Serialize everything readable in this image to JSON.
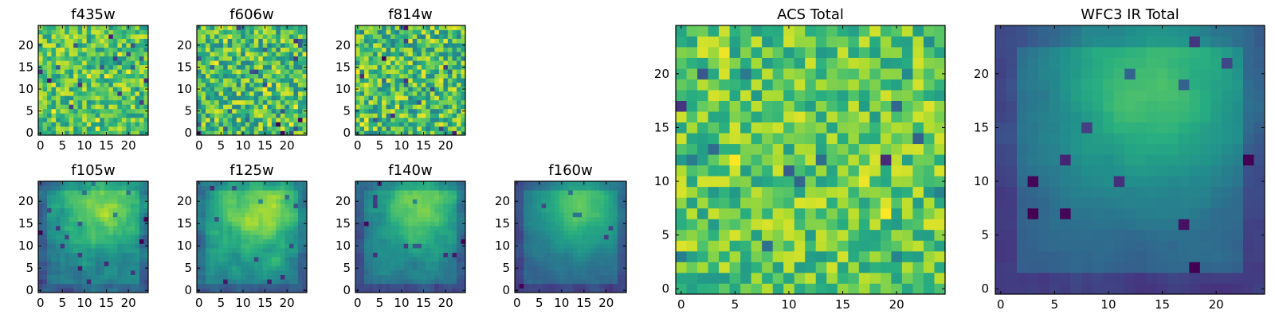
{
  "colormap": "viridis",
  "colors": {
    "low": "#440154",
    "mid_low": "#31688e",
    "mid": "#21918c",
    "mid_high": "#5ec962",
    "high": "#fde725",
    "frame": "#000000",
    "background": "#ffffff"
  },
  "chart_data": [
    {
      "type": "heatmap",
      "title": "f435w",
      "xticks": [
        "0",
        "5",
        "10",
        "15",
        "20"
      ],
      "yticks": [
        "0",
        "5",
        "10",
        "15",
        "20"
      ],
      "xlim": [
        -0.5,
        24.5
      ],
      "ylim": [
        -0.5,
        24.5
      ],
      "grid": [
        25,
        25
      ],
      "pattern": "noise",
      "level": 0.72,
      "spread": 0.14,
      "seed": 11
    },
    {
      "type": "heatmap",
      "title": "f606w",
      "xticks": [
        "0",
        "5",
        "10",
        "15",
        "20"
      ],
      "yticks": [
        "0",
        "5",
        "10",
        "15",
        "20"
      ],
      "xlim": [
        -0.5,
        24.5
      ],
      "ylim": [
        -0.5,
        24.5
      ],
      "grid": [
        25,
        25
      ],
      "pattern": "noise",
      "level": 0.7,
      "spread": 0.17,
      "seed": 23
    },
    {
      "type": "heatmap",
      "title": "f814w",
      "xticks": [
        "0",
        "5",
        "10",
        "15",
        "20"
      ],
      "yticks": [
        "0",
        "5",
        "10",
        "15",
        "20"
      ],
      "xlim": [
        -0.5,
        24.5
      ],
      "ylim": [
        -0.5,
        24.5
      ],
      "grid": [
        25,
        25
      ],
      "pattern": "noise",
      "level": 0.7,
      "spread": 0.17,
      "seed": 37
    },
    {
      "type": "heatmap",
      "title": "f105w",
      "xticks": [
        "0",
        "5",
        "10",
        "15",
        "20"
      ],
      "yticks": [
        "0",
        "5",
        "10",
        "15",
        "20"
      ],
      "xlim": [
        -0.5,
        24.5
      ],
      "ylim": [
        -0.5,
        24.5
      ],
      "grid": [
        25,
        25
      ],
      "pattern": "blob",
      "level": 0.58,
      "spread": 0.15,
      "seed": 41
    },
    {
      "type": "heatmap",
      "title": "f125w",
      "xticks": [
        "0",
        "5",
        "10",
        "15",
        "20"
      ],
      "yticks": [
        "0",
        "5",
        "10",
        "15",
        "20"
      ],
      "xlim": [
        -0.5,
        24.5
      ],
      "ylim": [
        -0.5,
        24.5
      ],
      "grid": [
        25,
        25
      ],
      "pattern": "blob",
      "level": 0.62,
      "spread": 0.14,
      "seed": 53
    },
    {
      "type": "heatmap",
      "title": "f140w",
      "xticks": [
        "0",
        "5",
        "10",
        "15",
        "20"
      ],
      "yticks": [
        "0",
        "5",
        "10",
        "15",
        "20"
      ],
      "xlim": [
        -0.5,
        24.5
      ],
      "ylim": [
        -0.5,
        24.5
      ],
      "grid": [
        25,
        25
      ],
      "pattern": "blob",
      "level": 0.55,
      "spread": 0.11,
      "seed": 67
    },
    {
      "type": "heatmap",
      "title": "f160w",
      "xticks": [
        "0",
        "5",
        "10",
        "15",
        "20"
      ],
      "yticks": [
        "0",
        "5",
        "10",
        "15",
        "20"
      ],
      "xlim": [
        -0.5,
        24.5
      ],
      "ylim": [
        -0.5,
        24.5
      ],
      "grid": [
        25,
        25
      ],
      "pattern": "blob",
      "level": 0.5,
      "spread": 0.07,
      "seed": 79
    },
    {
      "type": "heatmap",
      "title": "ACS Total",
      "xticks": [
        "0",
        "5",
        "10",
        "15",
        "20"
      ],
      "yticks": [
        "0",
        "5",
        "10",
        "15",
        "20"
      ],
      "xlim": [
        -0.5,
        24.5
      ],
      "ylim": [
        -0.5,
        24.5
      ],
      "grid": [
        25,
        25
      ],
      "pattern": "noise",
      "level": 0.74,
      "spread": 0.13,
      "seed": 97
    },
    {
      "type": "heatmap",
      "title": "WFC3 IR Total",
      "xticks": [
        "0",
        "5",
        "10",
        "15",
        "20"
      ],
      "yticks": [
        "0",
        "5",
        "10",
        "15",
        "20"
      ],
      "xlim": [
        -0.5,
        24.5
      ],
      "ylim": [
        -0.5,
        24.5
      ],
      "grid": [
        25,
        25
      ],
      "pattern": "blob",
      "level": 0.47,
      "spread": 0.05,
      "seed": 101
    }
  ]
}
